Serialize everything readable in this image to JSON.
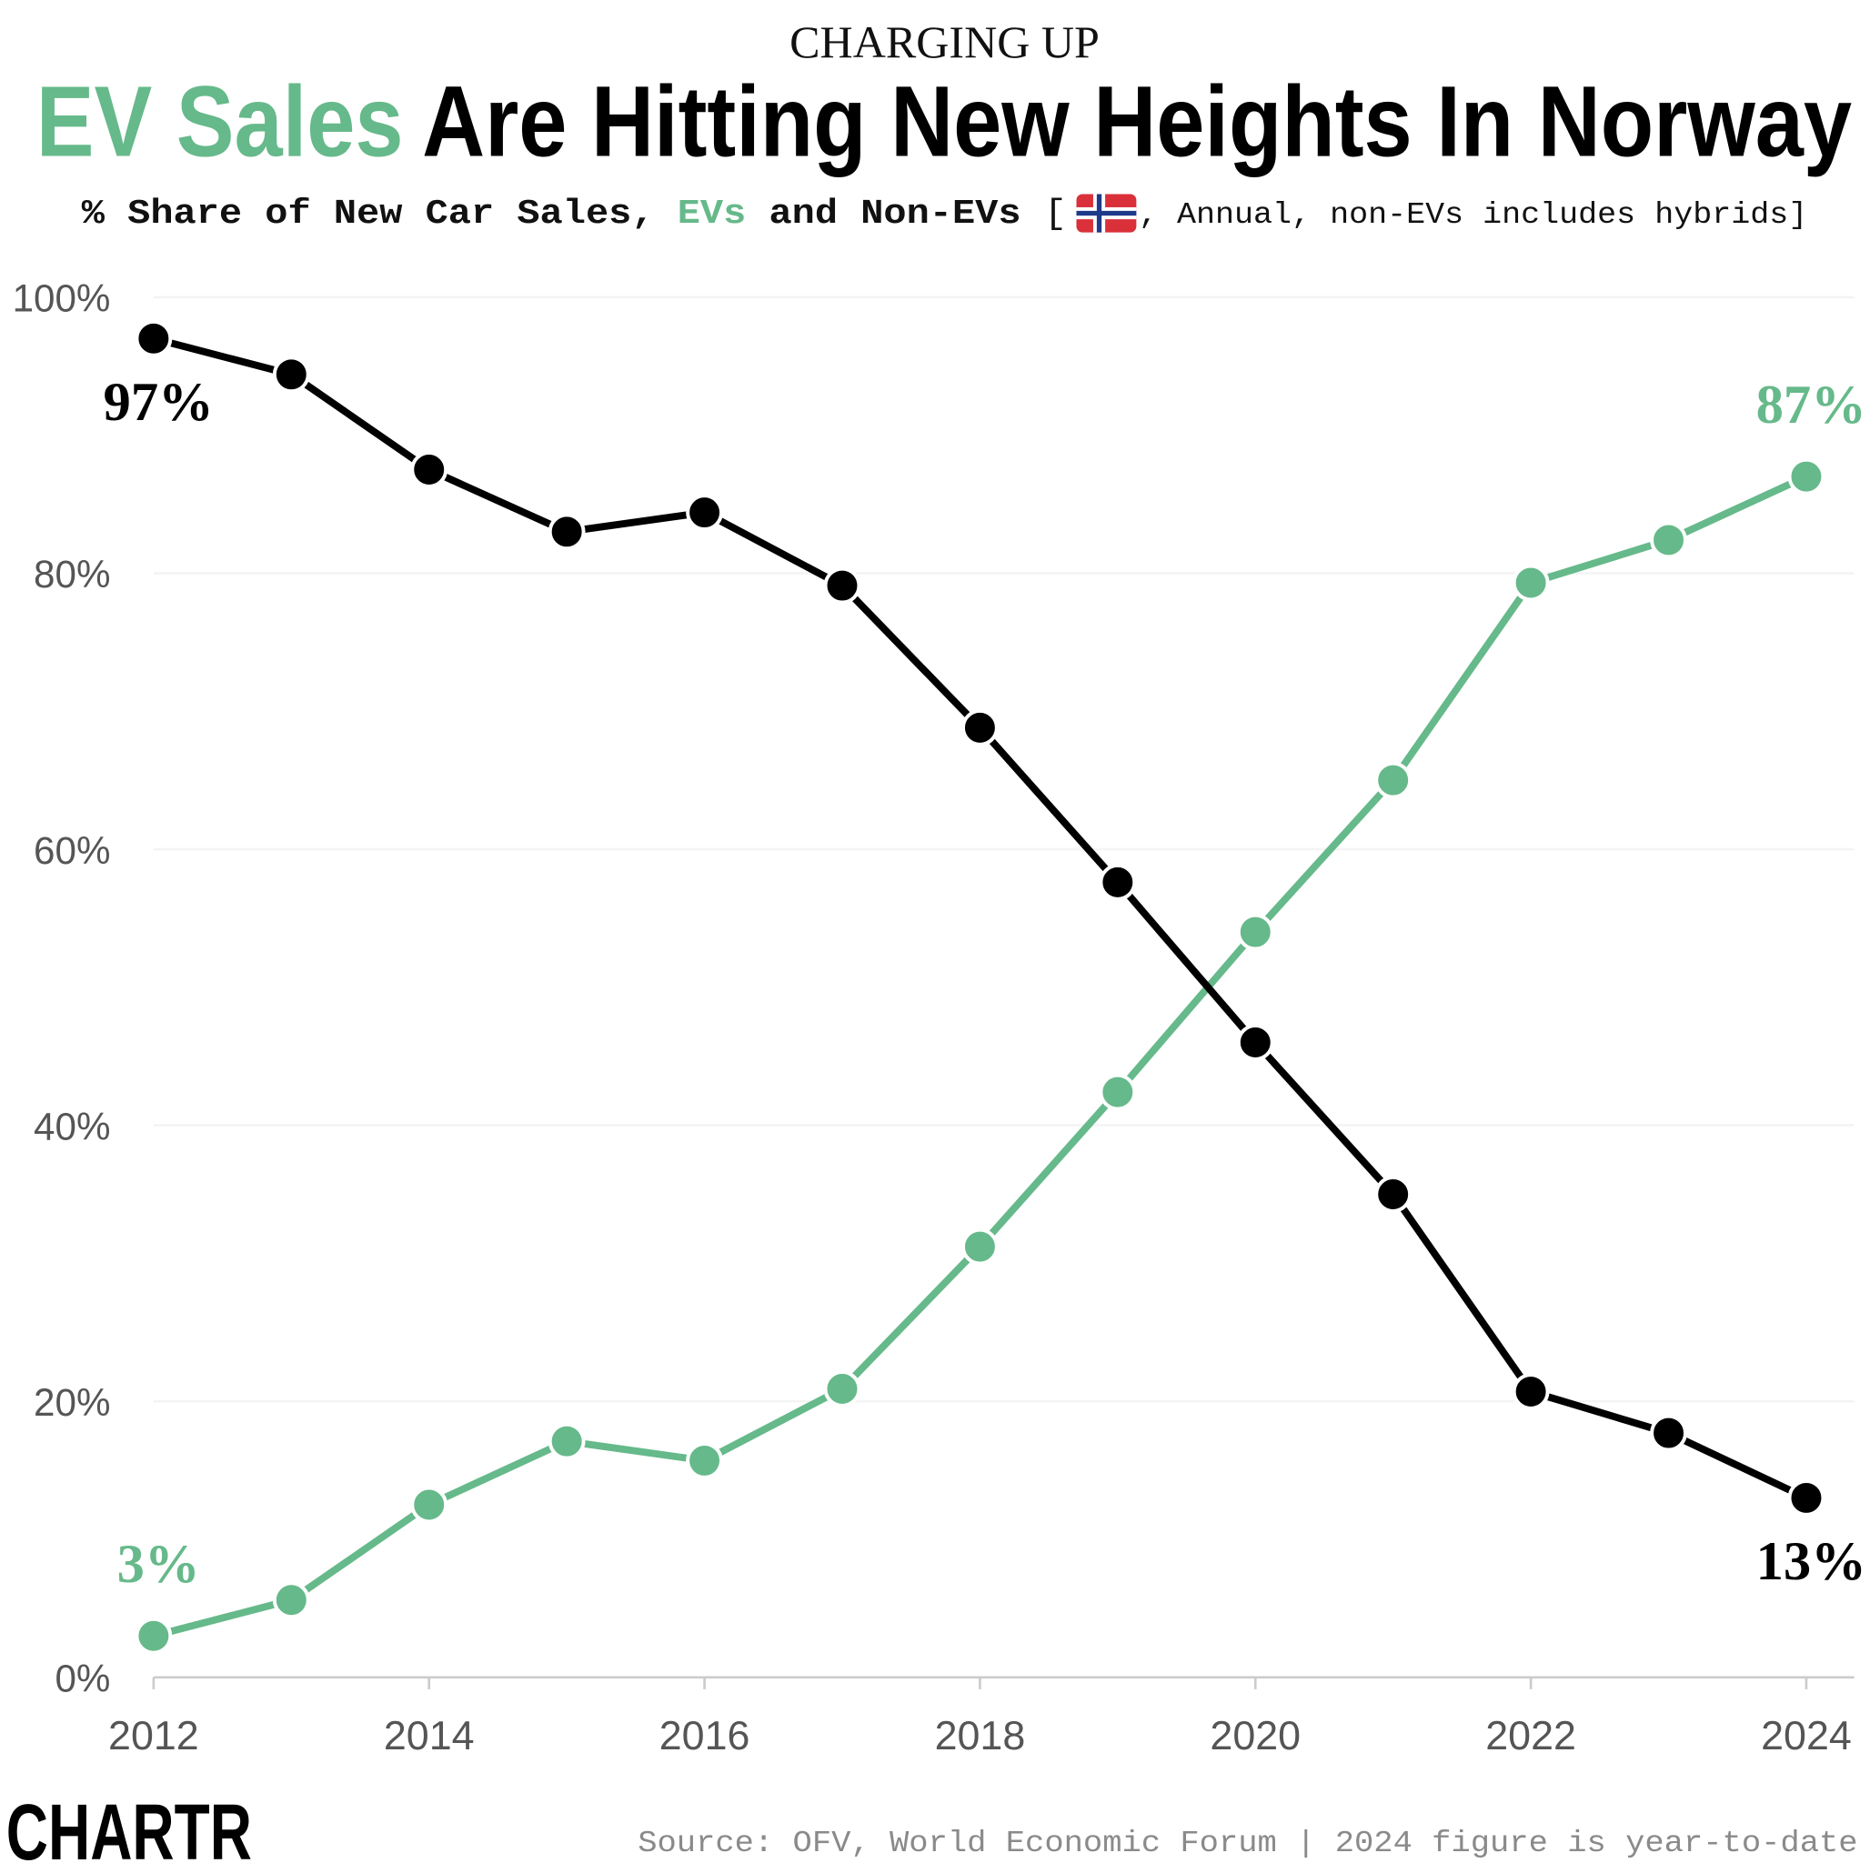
{
  "chart_data": {
    "type": "line",
    "supertitle": "CHARGING UP",
    "title_highlight": "EV Sales",
    "title": "Are Hitting New Heights In Norway",
    "subtitle_start": "% Share of New Car Sales, ",
    "subtitle_and": " and ",
    "subtitle_bracket": " [",
    "subtitle_note": ", Annual, non-EVs includes hybrids]",
    "x": [
      2012,
      2013,
      2014,
      2015,
      2016,
      2017,
      2018,
      2019,
      2020,
      2021,
      2022,
      2023,
      2024
    ],
    "xlim": [
      2012,
      2024
    ],
    "xticks": [
      2012,
      2014,
      2016,
      2018,
      2020,
      2022,
      2024
    ],
    "ylim": [
      0,
      100
    ],
    "yticks": [
      {
        "value": 0,
        "label": "0%"
      },
      {
        "value": 20,
        "label": "20%"
      },
      {
        "value": 40,
        "label": "40%"
      },
      {
        "value": 60,
        "label": "60%"
      },
      {
        "value": 80,
        "label": "80%"
      },
      {
        "value": 100,
        "label": "100%"
      }
    ],
    "grid": true,
    "series": [
      {
        "name": "EVs",
        "color": "#66b98a",
        "values": [
          3,
          5.6,
          12.5,
          17.1,
          15.7,
          20.9,
          31.2,
          42.4,
          54.0,
          65.0,
          79.3,
          82.4,
          87
        ],
        "value_labels": [
          "3%",
          null,
          null,
          null,
          null,
          null,
          null,
          null,
          null,
          null,
          null,
          null,
          "87%"
        ]
      },
      {
        "name": "Non-EVs",
        "color": "#000000",
        "values": [
          97,
          94.4,
          87.5,
          83.0,
          84.4,
          79.1,
          68.8,
          57.6,
          46.0,
          35.0,
          20.7,
          17.7,
          13
        ],
        "value_labels": [
          "97%",
          null,
          null,
          null,
          null,
          null,
          null,
          null,
          null,
          null,
          null,
          null,
          "13%"
        ]
      }
    ],
    "source": "Source: OFV, World Economic Forum | 2024 figure is year-to-date",
    "logo": "CHARTR"
  }
}
